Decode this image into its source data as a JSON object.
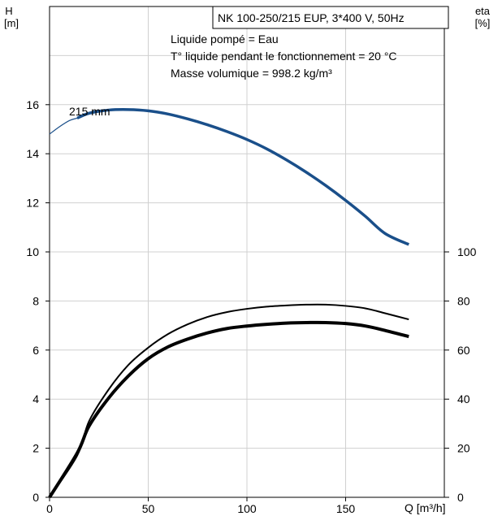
{
  "chart_data": {
    "type": "line",
    "title": "NK 100-250/215 EUP, 3*400 V, 50Hz",
    "annotations": [
      "Liquide pompé = Eau",
      "T° liquide pendant le fonctionnement = 20 °C",
      "Masse volumique = 998.2 kg/m³"
    ],
    "curve_label": "215 mm",
    "xlabel": "Q [m³/h]",
    "ylabel_left": [
      "H",
      "[m]"
    ],
    "ylabel_right": [
      "eta",
      "[%]"
    ],
    "xlim": [
      0,
      200
    ],
    "ylim_left": [
      0,
      20
    ],
    "ylim_right": [
      0,
      200
    ],
    "x_ticks": [
      0,
      50,
      100,
      150
    ],
    "y_ticks_left": [
      0,
      2,
      4,
      6,
      8,
      10,
      12,
      14,
      16
    ],
    "y_ticks_right": [
      0,
      20,
      40,
      60,
      80,
      100
    ],
    "grid": true,
    "series": [
      {
        "axis": "left",
        "color": "#1a4f8a",
        "thin_extension": [
          [
            0,
            14.8
          ],
          [
            5,
            15.1
          ],
          [
            10,
            15.35
          ],
          [
            14,
            15.45
          ]
        ],
        "points": [
          [
            14,
            15.45
          ],
          [
            20,
            15.65
          ],
          [
            30,
            15.78
          ],
          [
            40,
            15.8
          ],
          [
            50,
            15.75
          ],
          [
            60,
            15.62
          ],
          [
            70,
            15.42
          ],
          [
            80,
            15.18
          ],
          [
            90,
            14.9
          ],
          [
            100,
            14.58
          ],
          [
            110,
            14.2
          ],
          [
            120,
            13.75
          ],
          [
            130,
            13.25
          ],
          [
            140,
            12.7
          ],
          [
            150,
            12.1
          ],
          [
            160,
            11.45
          ],
          [
            170,
            10.75
          ],
          [
            182,
            10.3
          ]
        ]
      },
      {
        "axis": "right",
        "color": "#000000",
        "style": "thin",
        "points": [
          [
            0,
            0
          ],
          [
            14,
            17
          ],
          [
            20,
            31
          ],
          [
            30,
            44
          ],
          [
            40,
            54
          ],
          [
            50,
            61
          ],
          [
            60,
            66.5
          ],
          [
            70,
            70.5
          ],
          [
            80,
            73.5
          ],
          [
            90,
            75.5
          ],
          [
            100,
            76.8
          ],
          [
            110,
            77.7
          ],
          [
            120,
            78.2
          ],
          [
            130,
            78.5
          ],
          [
            140,
            78.5
          ],
          [
            150,
            78
          ],
          [
            160,
            77
          ],
          [
            170,
            75
          ],
          [
            182,
            72.5
          ]
        ]
      },
      {
        "axis": "right",
        "color": "#000000",
        "style": "thick",
        "points": [
          [
            0,
            0
          ],
          [
            14,
            18
          ],
          [
            20,
            29
          ],
          [
            30,
            40.5
          ],
          [
            40,
            49.5
          ],
          [
            50,
            56.5
          ],
          [
            60,
            61.3
          ],
          [
            70,
            64.5
          ],
          [
            80,
            67
          ],
          [
            90,
            68.8
          ],
          [
            100,
            69.8
          ],
          [
            110,
            70.5
          ],
          [
            120,
            71
          ],
          [
            130,
            71.2
          ],
          [
            140,
            71.2
          ],
          [
            150,
            70.8
          ],
          [
            160,
            69.8
          ],
          [
            170,
            68
          ],
          [
            182,
            65.5
          ]
        ]
      }
    ]
  }
}
